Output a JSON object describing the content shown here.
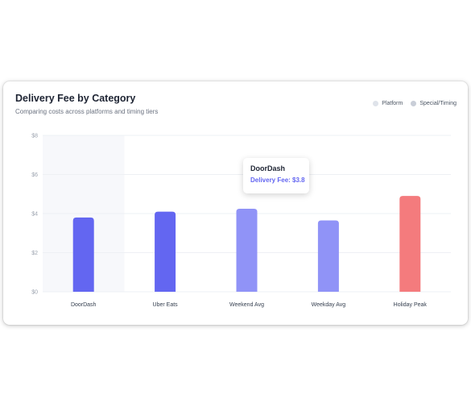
{
  "chart_data": {
    "type": "bar",
    "title": "Delivery Fee by Category",
    "subtitle": "Comparing costs across platforms and timing tiers",
    "categories": [
      "DoorDash",
      "Uber Eats",
      "Weekend Avg",
      "Weekday Avg",
      "Holiday Peak"
    ],
    "values": [
      3.8,
      4.1,
      4.25,
      3.65,
      4.9
    ],
    "bar_colors": [
      "#6366f1",
      "#6366f1",
      "#9093f7",
      "#9093f7",
      "#f47b7d"
    ],
    "ylim": [
      0,
      8
    ],
    "yticks": [
      0,
      2,
      4,
      6,
      8
    ],
    "ytick_labels": [
      "$0",
      "$2",
      "$4",
      "$6",
      "$8"
    ],
    "xlabel": "",
    "ylabel": "",
    "grid": true,
    "legend_position": "top-right",
    "legend": [
      {
        "label": "Platform",
        "color": "#dfe3ea"
      },
      {
        "label": "Special/Timing",
        "color": "#c9ced8"
      }
    ],
    "highlighted_category": "DoorDash",
    "tooltip": {
      "title": "DoorDash",
      "value_text": "Delivery Fee: $3.8"
    }
  }
}
